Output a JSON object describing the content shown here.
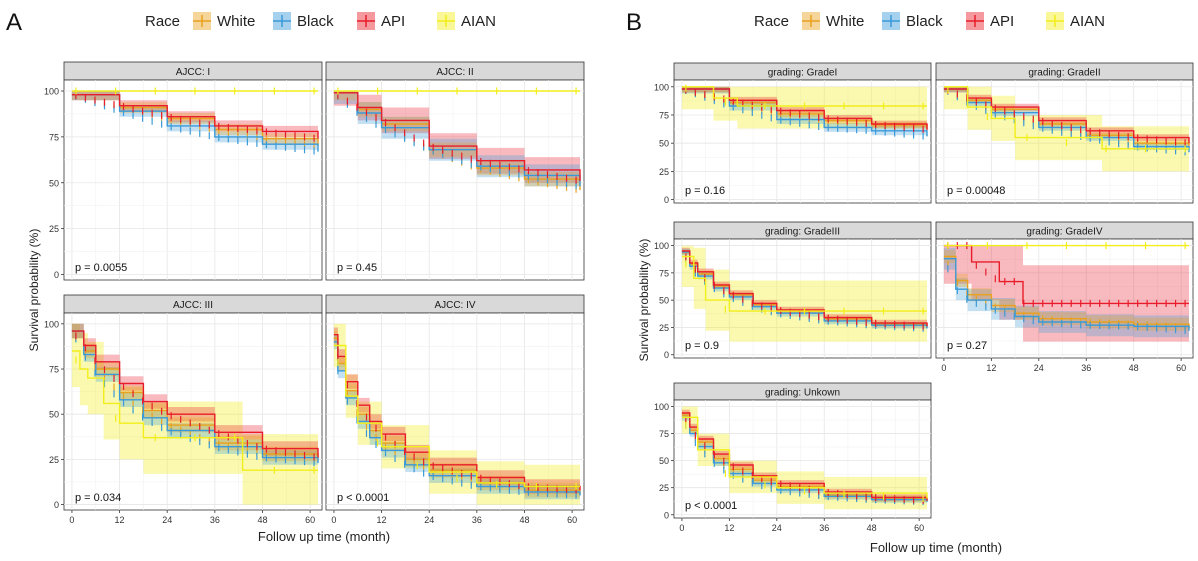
{
  "colors": {
    "White": "#e8a21f",
    "Black": "#3a9ad9",
    "API": "#e81c2a",
    "AIAN": "#f2ee1a"
  },
  "chart_data": [
    {
      "figure_label": "A",
      "type": "line",
      "legend": {
        "title": "Race",
        "entries": [
          "White",
          "Black",
          "API",
          "AIAN"
        ],
        "placement": "top"
      },
      "xlabel": "Follow up time (month)",
      "ylabel": "Survival probability (%)",
      "x_ticks": [
        0,
        12,
        24,
        36,
        48,
        60
      ],
      "y_ticks": [
        0,
        25,
        50,
        75,
        100
      ],
      "xlim": [
        -2,
        63
      ],
      "ylim": [
        -3,
        106
      ],
      "grid": true,
      "panels": [
        {
          "title": "AJCC: I",
          "p_value": "p = 0.0055",
          "series": [
            {
              "name": "White",
              "x": [
                0,
                12,
                24,
                36,
                48,
                62
              ],
              "y": [
                98,
                91,
                85,
                79,
                74,
                70
              ],
              "band": 3
            },
            {
              "name": "Black",
              "x": [
                0,
                12,
                24,
                36,
                48,
                62
              ],
              "y": [
                98,
                89,
                81,
                75,
                71,
                67
              ],
              "band": 3
            },
            {
              "name": "API",
              "x": [
                0,
                12,
                24,
                36,
                48,
                62
              ],
              "y": [
                98,
                92,
                86,
                81,
                78,
                74
              ],
              "band": 3
            },
            {
              "name": "AIAN",
              "x": [
                0,
                62
              ],
              "y": [
                100,
                100
              ],
              "band": 0
            }
          ]
        },
        {
          "title": "AJCC: II",
          "p_value": "p = 0.45",
          "series": [
            {
              "name": "White",
              "x": [
                0,
                6,
                12,
                24,
                36,
                48,
                62
              ],
              "y": [
                99,
                90,
                82,
                68,
                58,
                52,
                46
              ],
              "band": 4
            },
            {
              "name": "Black",
              "x": [
                0,
                6,
                12,
                24,
                36,
                48,
                62
              ],
              "y": [
                99,
                88,
                80,
                68,
                59,
                54,
                48
              ],
              "band": 6
            },
            {
              "name": "API",
              "x": [
                0,
                6,
                12,
                24,
                36,
                48,
                62
              ],
              "y": [
                99,
                91,
                84,
                70,
                62,
                57,
                51
              ],
              "band": 7
            },
            {
              "name": "AIAN",
              "x": [
                0,
                62
              ],
              "y": [
                100,
                100
              ],
              "band": 0
            }
          ]
        },
        {
          "title": "AJCC: III",
          "p_value": "p = 0.034",
          "series": [
            {
              "name": "White",
              "x": [
                0,
                3,
                6,
                12,
                18,
                24,
                36,
                48,
                62
              ],
              "y": [
                96,
                85,
                75,
                62,
                52,
                44,
                34,
                28,
                24
              ],
              "band": 4
            },
            {
              "name": "Black",
              "x": [
                0,
                3,
                6,
                12,
                18,
                24,
                36,
                48,
                62
              ],
              "y": [
                96,
                83,
                72,
                58,
                48,
                41,
                32,
                26,
                23
              ],
              "band": 4
            },
            {
              "name": "API",
              "x": [
                0,
                3,
                6,
                12,
                18,
                24,
                36,
                48,
                62
              ],
              "y": [
                96,
                88,
                79,
                67,
                57,
                50,
                40,
                31,
                26
              ],
              "band": 4
            },
            {
              "name": "AIAN",
              "x": [
                0,
                2,
                4,
                8,
                12,
                18,
                24,
                36,
                42,
                43,
                62
              ],
              "y": [
                85,
                75,
                70,
                56,
                45,
                37,
                37,
                37,
                37,
                19,
                19
              ],
              "band": 20
            }
          ]
        },
        {
          "title": "AJCC: IV",
          "p_value": "p < 0.0001",
          "series": [
            {
              "name": "White",
              "x": [
                0,
                1,
                3,
                6,
                9,
                12,
                18,
                24,
                36,
                48,
                62
              ],
              "y": [
                92,
                78,
                63,
                50,
                41,
                34,
                25,
                19,
                12,
                8,
                6
              ],
              "band": 4
            },
            {
              "name": "Black",
              "x": [
                0,
                1,
                3,
                6,
                9,
                12,
                18,
                24,
                36,
                48,
                62
              ],
              "y": [
                90,
                74,
                59,
                46,
                37,
                30,
                22,
                16,
                10,
                7,
                5
              ],
              "band": 4
            },
            {
              "name": "API",
              "x": [
                0,
                1,
                3,
                6,
                9,
                12,
                18,
                24,
                36,
                48,
                62
              ],
              "y": [
                94,
                82,
                68,
                55,
                46,
                39,
                29,
                22,
                15,
                10,
                8
              ],
              "band": 4
            },
            {
              "name": "AIAN",
              "x": [
                0,
                3,
                6,
                12,
                24,
                36,
                48,
                62
              ],
              "y": [
                88,
                60,
                45,
                32,
                18,
                12,
                10,
                10
              ],
              "band": 12
            }
          ]
        }
      ]
    },
    {
      "figure_label": "B",
      "type": "line",
      "legend": {
        "title": "Race",
        "entries": [
          "White",
          "Black",
          "API",
          "AIAN"
        ],
        "placement": "top"
      },
      "xlabel": "Follow up time (month)",
      "ylabel": "Survival probability (%)",
      "x_ticks": [
        0,
        12,
        24,
        36,
        48,
        60
      ],
      "y_ticks": [
        0,
        25,
        50,
        75,
        100
      ],
      "xlim": [
        -2,
        63
      ],
      "ylim": [
        -3,
        106
      ],
      "grid": true,
      "panels": [
        {
          "title": "grading: GradeI",
          "p_value": "p = 0.16",
          "series": [
            {
              "name": "White",
              "x": [
                0,
                12,
                24,
                36,
                48,
                62
              ],
              "y": [
                98,
                86,
                76,
                70,
                66,
                62
              ],
              "band": 3
            },
            {
              "name": "Black",
              "x": [
                0,
                12,
                24,
                36,
                48,
                62
              ],
              "y": [
                98,
                83,
                71,
                64,
                61,
                56
              ],
              "band": 4
            },
            {
              "name": "API",
              "x": [
                0,
                12,
                24,
                36,
                48,
                62
              ],
              "y": [
                98,
                88,
                79,
                72,
                67,
                62
              ],
              "band": 3
            },
            {
              "name": "AIAN",
              "x": [
                0,
                8,
                14,
                62
              ],
              "y": [
                100,
                90,
                83,
                83
              ],
              "band": 20
            }
          ]
        },
        {
          "title": "grading: GradeII",
          "p_value": "p = 0.00048",
          "series": [
            {
              "name": "White",
              "x": [
                0,
                6,
                12,
                24,
                36,
                48,
                62
              ],
              "y": [
                98,
                88,
                80,
                67,
                57,
                50,
                45
              ],
              "band": 2
            },
            {
              "name": "Black",
              "x": [
                0,
                6,
                12,
                24,
                36,
                48,
                62
              ],
              "y": [
                98,
                86,
                77,
                64,
                55,
                47,
                42
              ],
              "band": 3
            },
            {
              "name": "API",
              "x": [
                0,
                6,
                12,
                24,
                36,
                48,
                62
              ],
              "y": [
                98,
                90,
                82,
                70,
                61,
                55,
                50
              ],
              "band": 3
            },
            {
              "name": "AIAN",
              "x": [
                0,
                6,
                12,
                18,
                24,
                40,
                62
              ],
              "y": [
                100,
                82,
                72,
                55,
                55,
                45,
                45
              ],
              "band": 20
            }
          ]
        },
        {
          "title": "grading: GradeIII",
          "p_value": "p = 0.9",
          "series": [
            {
              "name": "White",
              "x": [
                0,
                2,
                4,
                8,
                12,
                18,
                24,
                36,
                48,
                62
              ],
              "y": [
                94,
                83,
                74,
                63,
                55,
                46,
                40,
                33,
                28,
                25
              ],
              "band": 2
            },
            {
              "name": "Black",
              "x": [
                0,
                2,
                4,
                8,
                12,
                18,
                24,
                36,
                48,
                62
              ],
              "y": [
                94,
                81,
                72,
                61,
                53,
                44,
                38,
                31,
                27,
                24
              ],
              "band": 3
            },
            {
              "name": "API",
              "x": [
                0,
                2,
                4,
                8,
                12,
                18,
                24,
                36,
                48,
                62
              ],
              "y": [
                95,
                84,
                76,
                64,
                56,
                47,
                41,
                34,
                29,
                26
              ],
              "band": 3
            },
            {
              "name": "AIAN",
              "x": [
                0,
                3,
                6,
                12,
                24,
                62
              ],
              "y": [
                90,
                70,
                50,
                40,
                40,
                40
              ],
              "band": 28
            }
          ]
        },
        {
          "title": "grading: GradeIV",
          "p_value": "p = 0.27",
          "series": [
            {
              "name": "White",
              "x": [
                0,
                3,
                6,
                12,
                18,
                24,
                36,
                48,
                62
              ],
              "y": [
                90,
                68,
                55,
                45,
                38,
                33,
                30,
                28,
                25
              ],
              "band": 6
            },
            {
              "name": "Black",
              "x": [
                0,
                3,
                6,
                12,
                18,
                24,
                36,
                48,
                62
              ],
              "y": [
                88,
                60,
                50,
                42,
                35,
                30,
                27,
                26,
                22
              ],
              "band": 10
            },
            {
              "name": "API",
              "x": [
                0,
                6,
                7,
                14,
                18,
                20,
                24,
                62
              ],
              "y": [
                100,
                100,
                85,
                67,
                67,
                47,
                47,
                47
              ],
              "band": 35
            },
            {
              "name": "AIAN",
              "x": [
                0,
                62
              ],
              "y": [
                100,
                100
              ],
              "band": 0
            }
          ]
        },
        {
          "title": "grading: Unkown",
          "p_value": "p < 0.0001",
          "series": [
            {
              "name": "White",
              "x": [
                0,
                2,
                4,
                8,
                12,
                18,
                24,
                36,
                48,
                62
              ],
              "y": [
                92,
                78,
                67,
                52,
                42,
                32,
                26,
                18,
                15,
                13
              ],
              "band": 3
            },
            {
              "name": "Black",
              "x": [
                0,
                2,
                4,
                8,
                12,
                18,
                24,
                36,
                48,
                62
              ],
              "y": [
                90,
                75,
                63,
                48,
                38,
                29,
                23,
                17,
                14,
                12
              ],
              "band": 3
            },
            {
              "name": "API",
              "x": [
                0,
                2,
                4,
                8,
                12,
                18,
                24,
                36,
                48,
                62
              ],
              "y": [
                94,
                81,
                70,
                56,
                46,
                36,
                29,
                21,
                16,
                13
              ],
              "band": 3
            },
            {
              "name": "AIAN",
              "x": [
                0,
                4,
                12,
                24,
                36,
                62
              ],
              "y": [
                90,
                60,
                35,
                25,
                20,
                15
              ],
              "band": 15
            }
          ]
        }
      ]
    }
  ]
}
